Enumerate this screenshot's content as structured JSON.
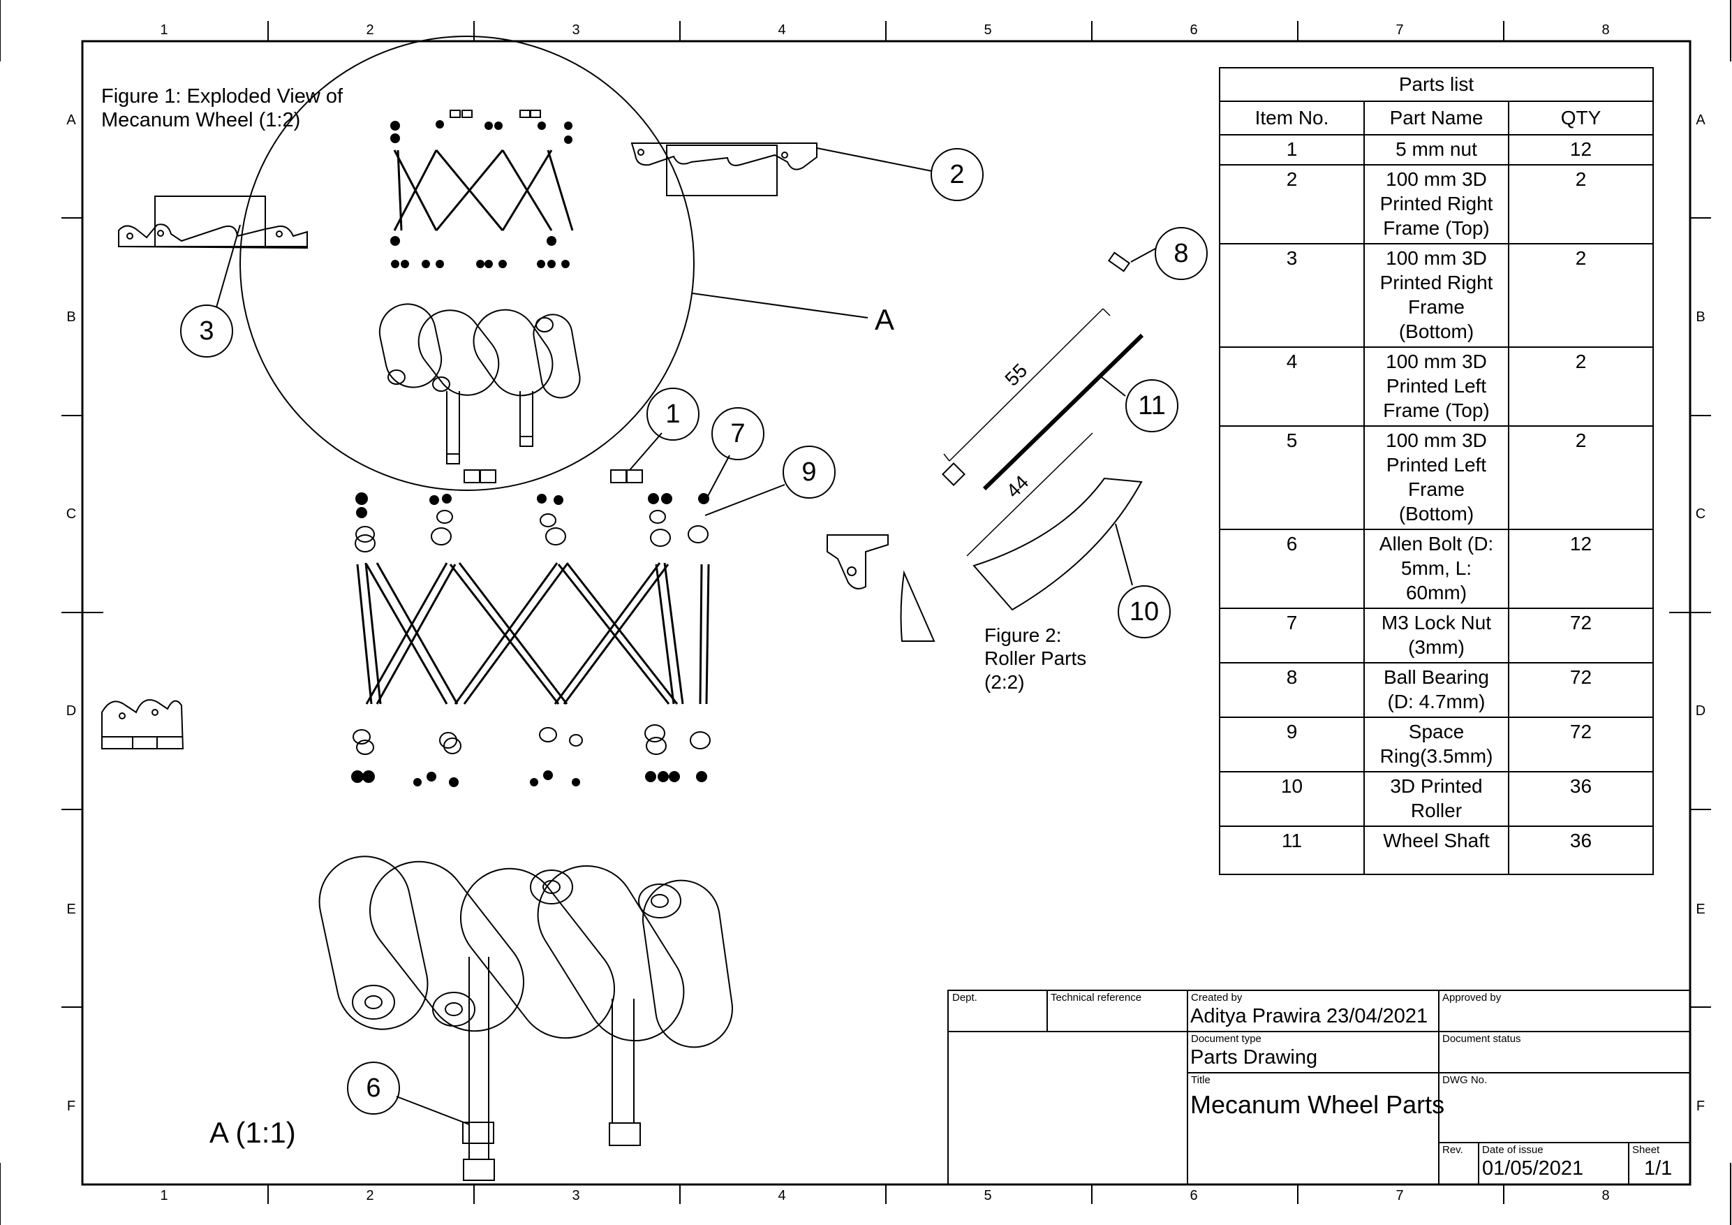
{
  "figure1_caption": [
    "Figure 1: Exploded View of",
    "Mecanum Wheel (1:2)"
  ],
  "figure2_caption": [
    "Figure 2:",
    "Roller Parts",
    "(2:2)"
  ],
  "detail_label": "A",
  "detail_view_label": "A (1:1)",
  "dimensions": {
    "shaft_length": "55",
    "roller_length": "44"
  },
  "callouts": [
    "1",
    "2",
    "3",
    "6",
    "7",
    "8",
    "9",
    "10",
    "11"
  ],
  "zone_columns": [
    "1",
    "2",
    "3",
    "4",
    "5",
    "6",
    "7",
    "8"
  ],
  "zone_rows": [
    "A",
    "B",
    "C",
    "D",
    "E",
    "F"
  ],
  "parts_list": {
    "title": "Parts list",
    "headers": [
      "Item No.",
      "Part Name",
      "QTY"
    ],
    "rows": [
      {
        "item": "1",
        "name": [
          "5 mm nut"
        ],
        "qty": "12"
      },
      {
        "item": "2",
        "name": [
          "100 mm 3D",
          "Printed Right",
          "Frame (Top)"
        ],
        "qty": "2"
      },
      {
        "item": "3",
        "name": [
          "100 mm 3D",
          "Printed Right",
          "Frame",
          "(Bottom)"
        ],
        "qty": "2"
      },
      {
        "item": "4",
        "name": [
          "100 mm 3D",
          "Printed Left",
          "Frame (Top)"
        ],
        "qty": "2"
      },
      {
        "item": "5",
        "name": [
          "100 mm 3D",
          "Printed Left",
          "Frame",
          "(Bottom)"
        ],
        "qty": "2"
      },
      {
        "item": "6",
        "name": [
          "Allen Bolt (D:",
          "5mm, L:",
          "60mm)"
        ],
        "qty": "12"
      },
      {
        "item": "7",
        "name": [
          "M3 Lock Nut",
          "(3mm)"
        ],
        "qty": "72"
      },
      {
        "item": "8",
        "name": [
          "Ball Bearing",
          "(D: 4.7mm)"
        ],
        "qty": "72"
      },
      {
        "item": "9",
        "name": [
          "Space",
          "Ring(3.5mm)"
        ],
        "qty": "72"
      },
      {
        "item": "10",
        "name": [
          "3D Printed",
          "Roller"
        ],
        "qty": "36"
      },
      {
        "item": "11",
        "name": [
          "Wheel Shaft"
        ],
        "qty": "36"
      }
    ]
  },
  "title_block": {
    "dept_label": "Dept.",
    "tech_ref_label": "Technical reference",
    "created_by_label": "Created by",
    "created_by": "Aditya Prawira  23/04/2021",
    "approved_by_label": "Approved by",
    "doc_type_label": "Document type",
    "doc_type": "Parts Drawing",
    "doc_status_label": "Document status",
    "title_label": "Title",
    "title": "Mecanum Wheel Parts",
    "dwg_no_label": "DWG No.",
    "rev_label": "Rev.",
    "date_label": "Date of issue",
    "date": "01/05/2021",
    "sheet_label": "Sheet",
    "sheet": "1/1"
  }
}
